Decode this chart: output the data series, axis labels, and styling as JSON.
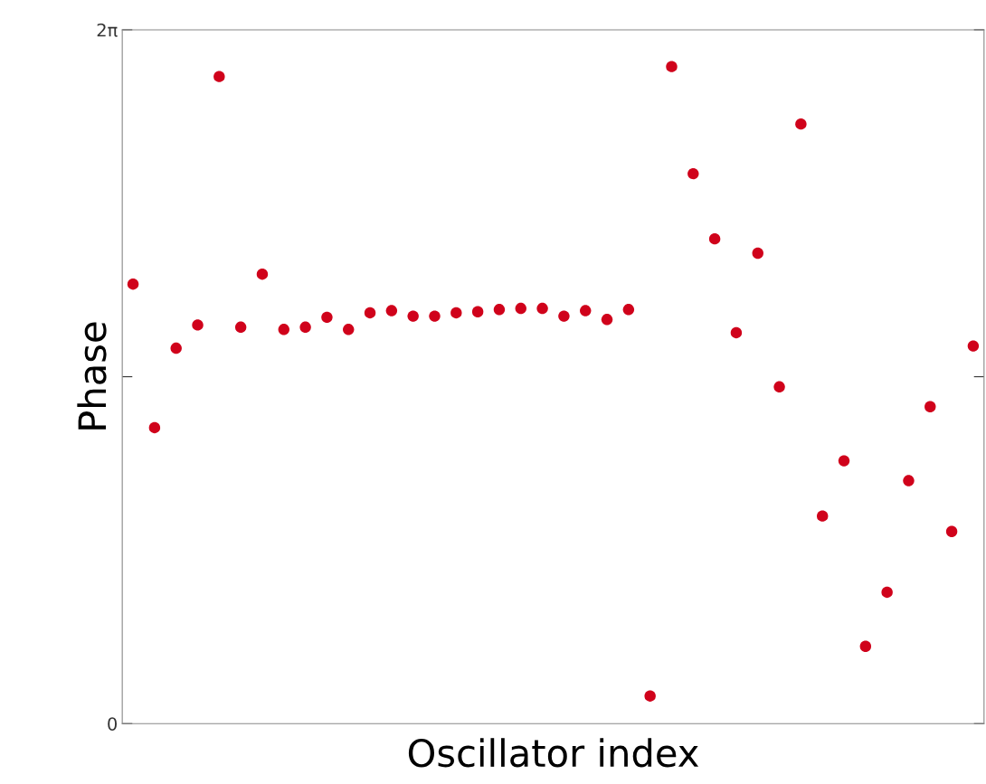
{
  "chart_data": {
    "type": "scatter",
    "xlabel": "Oscillator index",
    "ylabel": "Phase",
    "categories": [
      null,
      null,
      null,
      null,
      null,
      null,
      null,
      null,
      null,
      null,
      null,
      null,
      null,
      null,
      null,
      null,
      null,
      null,
      null,
      null,
      null,
      null,
      null,
      null,
      null,
      null,
      null,
      null,
      null,
      null,
      null,
      null,
      null,
      null,
      null,
      null,
      null,
      null,
      null,
      null
    ],
    "series": [
      {
        "color": "#d0021b",
        "values": [
          3.98,
          2.68,
          3.4,
          3.61,
          5.86,
          3.59,
          4.07,
          3.57,
          3.59,
          3.68,
          3.57,
          3.72,
          3.74,
          3.69,
          3.69,
          3.72,
          3.73,
          3.75,
          3.76,
          3.76,
          3.69,
          3.74,
          3.66,
          3.75,
          0.25,
          5.95,
          4.98,
          4.39,
          3.54,
          4.26,
          3.05,
          5.43,
          1.88,
          2.38,
          0.7,
          1.19,
          2.2,
          2.87,
          1.74,
          3.42
        ]
      }
    ],
    "ylim": [
      0,
      6.2832
    ],
    "yticks": [
      {
        "value": 0,
        "label": "0"
      },
      {
        "value": 3.1416,
        "label": null
      },
      {
        "value": 6.2832,
        "label": "2π"
      }
    ],
    "tick_labels": "y",
    "marker": "circle",
    "grid": false,
    "legend": false
  }
}
